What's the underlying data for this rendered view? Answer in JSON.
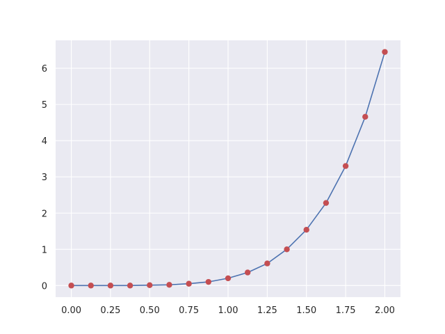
{
  "chart_data": {
    "type": "line",
    "title": "",
    "xlabel": "",
    "ylabel": "",
    "xlim": [
      -0.1,
      2.1
    ],
    "ylim": [
      -0.32,
      6.77
    ],
    "grid": true,
    "x_ticks": [
      "0.00",
      "0.25",
      "0.50",
      "0.75",
      "1.00",
      "1.25",
      "1.50",
      "1.75",
      "2.00"
    ],
    "y_ticks": [
      "0",
      "1",
      "2",
      "3",
      "4",
      "5",
      "6"
    ],
    "series": [
      {
        "x": [
          0.0,
          0.125,
          0.25,
          0.375,
          0.5,
          0.625,
          0.75,
          0.875,
          1.0,
          1.125,
          1.25,
          1.375,
          1.5,
          1.625,
          1.75,
          1.875,
          2.0
        ],
        "y": [
          0.0,
          0.0,
          0.0,
          0.0,
          0.01,
          0.02,
          0.05,
          0.1,
          0.2,
          0.36,
          0.61,
          1.0,
          1.54,
          2.28,
          3.3,
          4.66,
          6.45
        ]
      }
    ],
    "colors": {
      "plot_background": "#eaeaf2",
      "grid": "#ffffff",
      "line": "#4c72b0",
      "marker": "#c44e52"
    }
  }
}
